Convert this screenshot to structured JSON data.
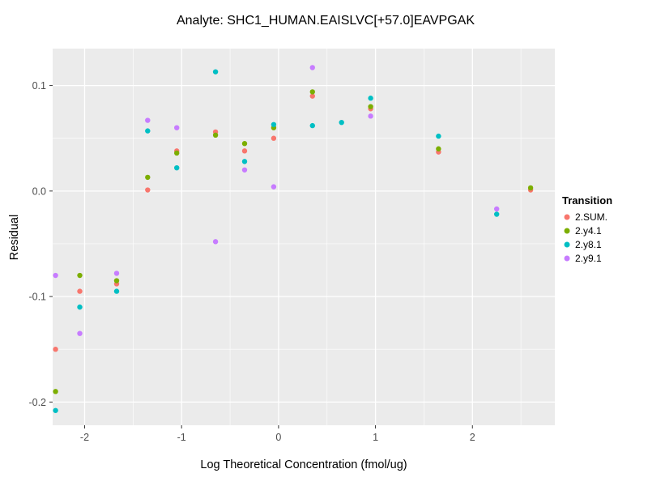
{
  "title": "Analyte: SHC1_HUMAN.EAISLVC[+57.0]EAVPGAK",
  "chart_data": {
    "type": "scatter",
    "title": "Analyte: SHC1_HUMAN.EAISLVC[+57.0]EAVPGAK",
    "xlabel": "Log Theoretical Concentration (fmol/ug)",
    "ylabel": "Residual",
    "xlim": [
      -2.33,
      2.85
    ],
    "ylim": [
      -0.222,
      0.135
    ],
    "x_ticks": [
      -2,
      -1,
      0,
      1,
      2
    ],
    "y_ticks": [
      0.1,
      0.0,
      -0.1,
      -0.2
    ],
    "x_minor_ticks": [
      -1.5,
      -0.5,
      0.5,
      1.5,
      2.5
    ],
    "y_minor_ticks": [
      0.05,
      -0.05,
      -0.15
    ],
    "grid": true,
    "panel_background": "#EBEBEB",
    "grid_color": "#FFFFFF",
    "tick_color": "#333333",
    "legend": {
      "title": "Transition",
      "position": "right"
    },
    "series": [
      {
        "name": "2.SUM.",
        "color": "#F8766D",
        "points": [
          [
            -2.3,
            -0.15
          ],
          [
            -2.05,
            -0.095
          ],
          [
            -1.67,
            -0.088
          ],
          [
            -1.35,
            0.001
          ],
          [
            -1.05,
            0.038
          ],
          [
            -0.65,
            0.056
          ],
          [
            -0.35,
            0.038
          ],
          [
            -0.05,
            0.05
          ],
          [
            0.35,
            0.09
          ],
          [
            0.95,
            0.078
          ],
          [
            1.65,
            0.037
          ],
          [
            2.6,
            0.001
          ]
        ]
      },
      {
        "name": "2.y4.1",
        "color": "#7CAE00",
        "points": [
          [
            -2.3,
            -0.19
          ],
          [
            -2.05,
            -0.08
          ],
          [
            -1.67,
            -0.085
          ],
          [
            -1.35,
            0.013
          ],
          [
            -1.05,
            0.036
          ],
          [
            -0.65,
            0.053
          ],
          [
            -0.35,
            0.045
          ],
          [
            -0.05,
            0.06
          ],
          [
            0.35,
            0.094
          ],
          [
            0.95,
            0.08
          ],
          [
            1.65,
            0.04
          ],
          [
            2.6,
            0.003
          ]
        ]
      },
      {
        "name": "2.y8.1",
        "color": "#00BFC4",
        "points": [
          [
            -2.3,
            -0.208
          ],
          [
            -2.05,
            -0.11
          ],
          [
            -1.67,
            -0.095
          ],
          [
            -1.35,
            0.057
          ],
          [
            -1.05,
            0.022
          ],
          [
            -0.65,
            0.113
          ],
          [
            -0.35,
            0.028
          ],
          [
            -0.05,
            0.063
          ],
          [
            0.35,
            0.062
          ],
          [
            0.65,
            0.065
          ],
          [
            0.95,
            0.088
          ],
          [
            1.65,
            0.052
          ],
          [
            2.25,
            -0.022
          ]
        ]
      },
      {
        "name": "2.y9.1",
        "color": "#C77CFF",
        "points": [
          [
            -2.3,
            -0.08
          ],
          [
            -2.05,
            -0.135
          ],
          [
            -1.67,
            -0.078
          ],
          [
            -1.35,
            0.067
          ],
          [
            -1.05,
            0.06
          ],
          [
            -0.65,
            -0.048
          ],
          [
            -0.35,
            0.02
          ],
          [
            -0.05,
            0.004
          ],
          [
            0.35,
            0.117
          ],
          [
            0.95,
            0.071
          ],
          [
            2.25,
            -0.017
          ]
        ]
      }
    ]
  }
}
